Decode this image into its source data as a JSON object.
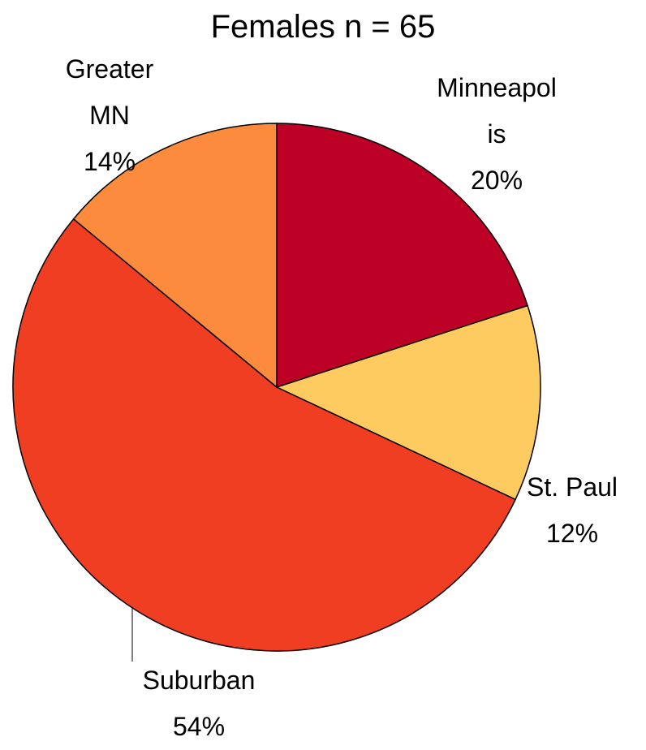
{
  "chart_data": {
    "type": "pie",
    "title": "Females n = 65",
    "categories": [
      "Minneapolis",
      "St. Paul",
      "Suburban",
      "Greater MN"
    ],
    "values": [
      20,
      12,
      54,
      14
    ],
    "value_labels": [
      "20%",
      "12%",
      "54%",
      "14%"
    ],
    "colors": [
      "#bd0026",
      "#fdcb5f",
      "#f03e22",
      "#fd8b3e"
    ]
  }
}
